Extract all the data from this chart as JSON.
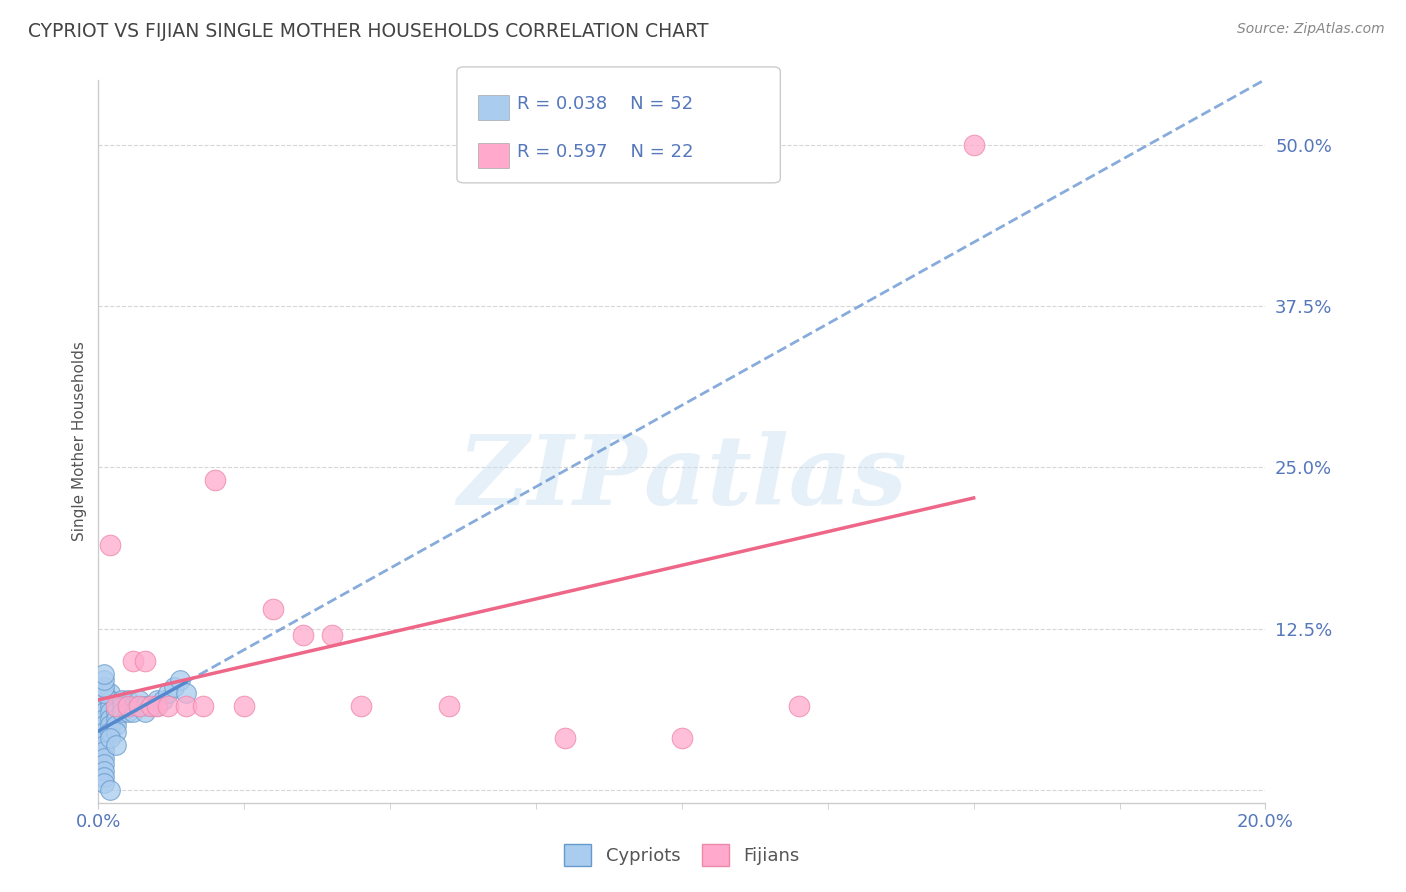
{
  "title": "CYPRIOT VS FIJIAN SINGLE MOTHER HOUSEHOLDS CORRELATION CHART",
  "source": "Source: ZipAtlas.com",
  "ylabel": "Single Mother Households",
  "xlim": [
    0.0,
    0.2
  ],
  "ylim": [
    -0.01,
    0.55
  ],
  "x_ticks": [
    0.0,
    0.2
  ],
  "x_tick_labels": [
    "0.0%",
    "20.0%"
  ],
  "y_tick_positions": [
    0.0,
    0.125,
    0.25,
    0.375,
    0.5
  ],
  "y_tick_labels": [
    "",
    "12.5%",
    "25.0%",
    "37.5%",
    "50.0%"
  ],
  "cypriot_color": "#aaccee",
  "fijian_color": "#ffaacc",
  "cypriot_edge": "#6699cc",
  "fijian_edge": "#ee88aa",
  "line_color_cypriot": "#5588cc",
  "line_color_fijian": "#ee6688",
  "legend_r_cypriot": "R = 0.038",
  "legend_n_cypriot": "N = 52",
  "legend_r_fijian": "R = 0.597",
  "legend_n_fijian": "N = 22",
  "watermark": "ZIPatlas",
  "title_color": "#444444",
  "source_color": "#888888",
  "label_color": "#5577bb",
  "grid_color": "#cccccc",
  "cypriot_x": [
    0.001,
    0.001,
    0.001,
    0.001,
    0.001,
    0.001,
    0.001,
    0.001,
    0.002,
    0.002,
    0.002,
    0.002,
    0.002,
    0.002,
    0.002,
    0.003,
    0.003,
    0.003,
    0.003,
    0.003,
    0.004,
    0.004,
    0.004,
    0.005,
    0.005,
    0.005,
    0.006,
    0.006,
    0.007,
    0.007,
    0.008,
    0.008,
    0.009,
    0.01,
    0.01,
    0.011,
    0.012,
    0.013,
    0.014,
    0.015,
    0.001,
    0.001,
    0.001,
    0.001,
    0.002,
    0.001,
    0.001,
    0.001,
    0.001,
    0.002,
    0.003,
    0.001
  ],
  "cypriot_y": [
    0.065,
    0.06,
    0.055,
    0.05,
    0.045,
    0.04,
    0.035,
    0.03,
    0.075,
    0.07,
    0.065,
    0.06,
    0.055,
    0.05,
    0.045,
    0.065,
    0.06,
    0.055,
    0.05,
    0.045,
    0.07,
    0.065,
    0.06,
    0.07,
    0.065,
    0.06,
    0.065,
    0.06,
    0.07,
    0.065,
    0.065,
    0.06,
    0.065,
    0.07,
    0.065,
    0.07,
    0.075,
    0.08,
    0.085,
    0.075,
    0.025,
    0.02,
    0.015,
    0.01,
    0.04,
    0.075,
    0.08,
    0.085,
    0.005,
    0.0,
    0.035,
    0.09
  ],
  "fijian_x": [
    0.002,
    0.003,
    0.005,
    0.006,
    0.007,
    0.008,
    0.009,
    0.01,
    0.012,
    0.015,
    0.018,
    0.02,
    0.025,
    0.03,
    0.035,
    0.04,
    0.045,
    0.06,
    0.08,
    0.1,
    0.12,
    0.15
  ],
  "fijian_y": [
    0.19,
    0.065,
    0.065,
    0.1,
    0.065,
    0.1,
    0.065,
    0.065,
    0.065,
    0.065,
    0.065,
    0.24,
    0.065,
    0.14,
    0.12,
    0.12,
    0.065,
    0.065,
    0.04,
    0.04,
    0.065,
    0.5
  ],
  "background_color": "#ffffff"
}
